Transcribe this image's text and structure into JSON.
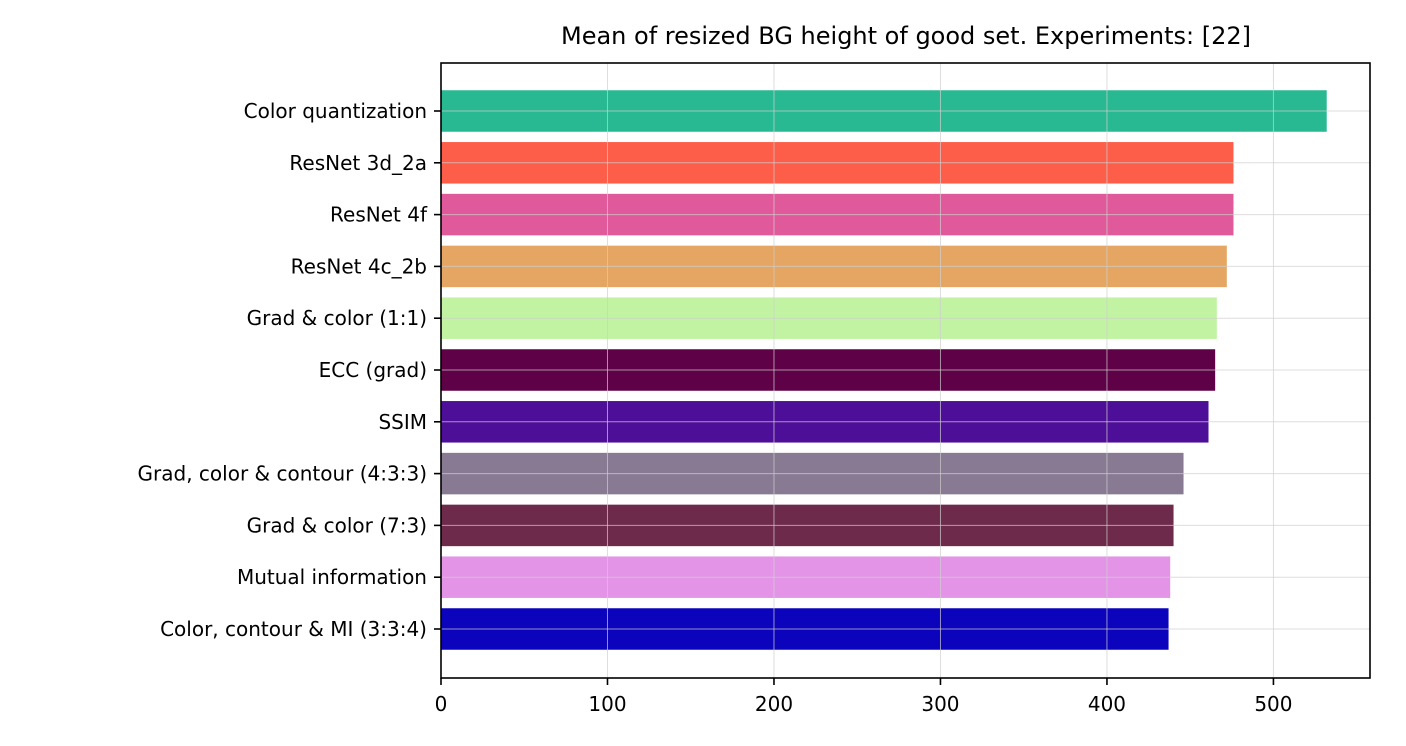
{
  "chart_data": {
    "type": "bar",
    "orientation": "horizontal",
    "title": "Mean of resized BG height of good set. Experiments: [22]",
    "xlabel": "",
    "ylabel": "",
    "xlim": [
      0,
      558
    ],
    "xticks": [
      0,
      100,
      200,
      300,
      400,
      500
    ],
    "grid": true,
    "categories": [
      "Color quantization",
      "ResNet 3d_2a",
      "ResNet 4f",
      "ResNet 4c_2b",
      "Grad & color (1:1)",
      "ECC (grad)",
      "SSIM",
      "Grad, color & contour (4:3:3)",
      "Grad & color (7:3)",
      "Mutual information",
      "Color, contour & MI (3:3:4)"
    ],
    "values": [
      532,
      476,
      476,
      472,
      466,
      465,
      461,
      446,
      440,
      438,
      437
    ],
    "colors": [
      "#28b992",
      "#fd5e4a",
      "#e05a9b",
      "#e4a662",
      "#c1f3a3",
      "#5e0146",
      "#4e0f98",
      "#877a92",
      "#6e2a4b",
      "#e494e7",
      "#0c03bd"
    ]
  }
}
